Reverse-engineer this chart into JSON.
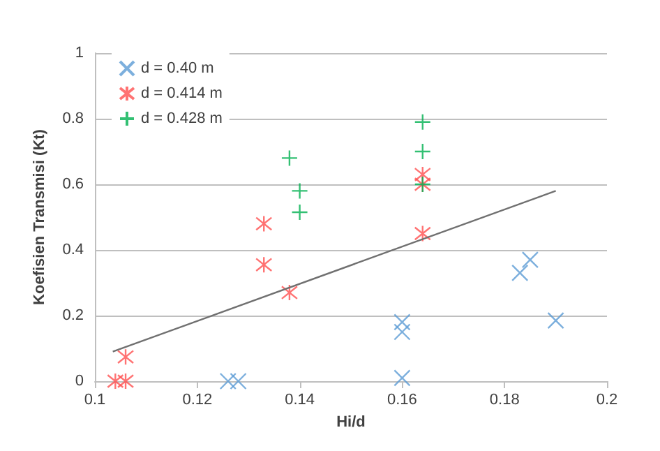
{
  "chart_data": {
    "type": "scatter",
    "xlabel": "Hi/d",
    "ylabel": "Koefisien Transmisi (Kt)",
    "xlim": [
      0.1,
      0.2
    ],
    "xticks": [
      0.1,
      0.12,
      0.14,
      0.16,
      0.18,
      0.2
    ],
    "ylim": [
      0,
      1
    ],
    "yticks": [
      0,
      0.2,
      0.4,
      0.6,
      0.8,
      1
    ],
    "grid": "y",
    "legend": "top left",
    "series": [
      {
        "name": "d = 0.40 m",
        "color": "#5b9bd5",
        "marker": "cross",
        "x": [
          0.126,
          0.128,
          0.16,
          0.16,
          0.16,
          0.183,
          0.185,
          0.19
        ],
        "values": [
          0,
          0,
          0.01,
          0.15,
          0.18,
          0.33,
          0.37,
          0.185
        ]
      },
      {
        "name": "d = 0.414 m",
        "color": "#ff5050",
        "x": [
          0.104,
          0.106,
          0.106,
          0.133,
          0.133,
          0.138,
          0.164,
          0.164,
          0.164
        ],
        "values": [
          0,
          0,
          0.074,
          0.48,
          0.355,
          0.27,
          0.63,
          0.6,
          0.45
        ]
      },
      {
        "name": "d = 0.428 m",
        "color": "#00b050",
        "marker": "plus",
        "x": [
          0.138,
          0.14,
          0.14,
          0.164,
          0.164,
          0.164
        ],
        "values": [
          0.68,
          0.58,
          0.515,
          0.79,
          0.7,
          0.6
        ]
      },
      {
        "type": "line",
        "color": "#707070",
        "marker": "none",
        "x": [
          0.1035,
          0.19
        ],
        "values": [
          0.09,
          0.58
        ]
      }
    ]
  }
}
